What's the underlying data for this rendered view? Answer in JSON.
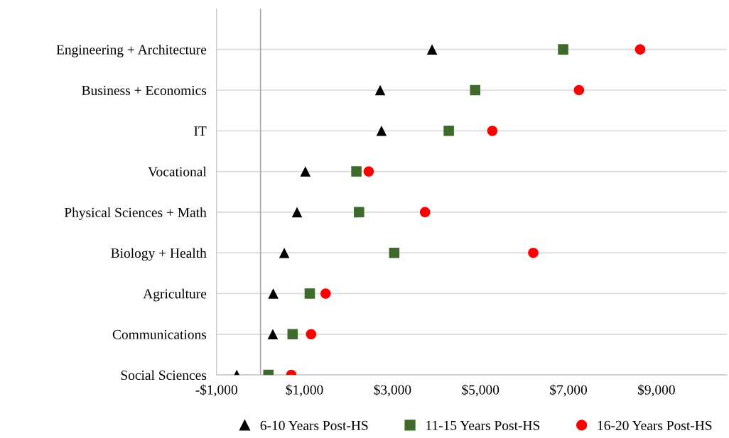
{
  "chart_data": {
    "type": "scatter",
    "orientation": "horizontal",
    "categories": [
      "Engineering + Architecture",
      "Business + Economics",
      "IT",
      "Vocational",
      "Physical Sciences + Math",
      "Biology + Health",
      "Agriculture",
      "Communications",
      "Social Sciences"
    ],
    "series": [
      {
        "name": "6-10 Years Post-HS",
        "color": "#000000",
        "marker": "triangle",
        "values": [
          3900,
          2720,
          2750,
          1020,
          830,
          540,
          290,
          280,
          -540
        ]
      },
      {
        "name": "11-15 Years Post-HS",
        "color": "#3e6b2b",
        "marker": "square",
        "values": [
          6880,
          4880,
          4280,
          2180,
          2240,
          3040,
          1120,
          730,
          180
        ]
      },
      {
        "name": "16-20 Years Post-HS",
        "color": "#ff0000",
        "marker": "circle",
        "values": [
          8630,
          7240,
          5270,
          2460,
          3740,
          6200,
          1480,
          1150,
          700
        ]
      }
    ],
    "xlim": [
      -1000,
      10600
    ],
    "xticks": [
      {
        "value": -1000,
        "label": "-$1,000"
      },
      {
        "value": 1000,
        "label": "$1,000"
      },
      {
        "value": 3000,
        "label": "$3,000"
      },
      {
        "value": 5000,
        "label": "$5,000"
      },
      {
        "value": 7000,
        "label": "$7,000"
      },
      {
        "value": 9000,
        "label": "$9,000"
      }
    ],
    "ref_lines": [
      {
        "axis": "x",
        "value": 0,
        "label": null,
        "color": "#a6a6a6"
      }
    ],
    "grid": "y",
    "legend": "bottom"
  }
}
